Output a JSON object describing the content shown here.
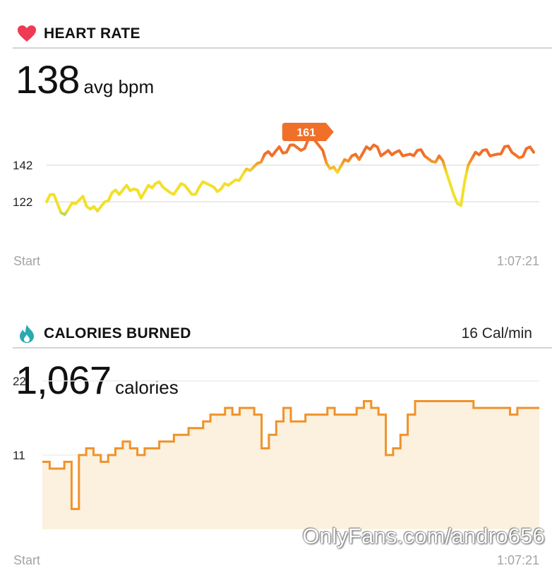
{
  "heart_rate": {
    "title": "HEART RATE",
    "value": "138",
    "unit": "avg bpm",
    "peak_label": "161",
    "start_label": "Start",
    "end_label": "1:07:21",
    "colors": {
      "low": "#4dbdb8",
      "mid": "#f2e02a",
      "high": "#f0702a",
      "icon": "#ee3a55"
    }
  },
  "calories": {
    "title": "CALORIES BURNED",
    "rate": "16 Cal/min",
    "value": "1,067",
    "unit": "calories",
    "start_label": "Start",
    "end_label": "1:07:21",
    "colors": {
      "line": "#f0922a",
      "fill": "#fbf1de",
      "icon": "#2aa9b0"
    }
  },
  "watermark": "OnlyFans.com/andro656",
  "chart_data": [
    {
      "type": "line",
      "title": "HEART RATE",
      "xlabel": "",
      "ylabel": "",
      "ylim": [
        106,
        170
      ],
      "x_tick_labels": [
        "Start",
        "1:07:21"
      ],
      "y_ticks": [
        122,
        142
      ],
      "peak": 161,
      "x": [
        0,
        1,
        2,
        3,
        4,
        5,
        6,
        7,
        8,
        9,
        10,
        11,
        12,
        13,
        14,
        15,
        16,
        17,
        18,
        19,
        20,
        21,
        22,
        23,
        24,
        25,
        26,
        27,
        28,
        29,
        30,
        31,
        32,
        33,
        34,
        35,
        36,
        37,
        38,
        39,
        40,
        41,
        42,
        43,
        44,
        45,
        46,
        47,
        48,
        49,
        50,
        51,
        52,
        53,
        54,
        55,
        56,
        57,
        58,
        59,
        60,
        61,
        62,
        63,
        64,
        65,
        66,
        67
      ],
      "y": [
        122,
        126,
        116,
        118,
        121,
        125,
        118,
        117,
        122,
        127,
        126,
        131,
        129,
        124,
        131,
        132,
        130,
        127,
        129,
        131,
        126,
        130,
        132,
        130,
        129,
        131,
        134,
        137,
        139,
        143,
        148,
        147,
        152,
        149,
        153,
        150,
        156,
        155,
        150,
        140,
        138,
        145,
        147,
        145,
        152,
        153,
        147,
        150,
        149,
        147,
        148,
        150,
        147,
        144,
        147,
        138,
        126,
        120,
        142,
        149,
        150,
        147,
        148,
        152,
        149,
        146,
        151,
        149
      ]
    },
    {
      "type": "area",
      "title": "CALORIES BURNED",
      "xlabel": "",
      "ylabel": "",
      "ylim": [
        0,
        25
      ],
      "x_tick_labels": [
        "Start",
        "1:07:21"
      ],
      "y_ticks": [
        11,
        22
      ],
      "x": [
        0,
        1,
        2,
        3,
        4,
        5,
        6,
        7,
        8,
        9,
        10,
        11,
        12,
        13,
        14,
        15,
        16,
        17,
        18,
        19,
        20,
        21,
        22,
        23,
        24,
        25,
        26,
        27,
        28,
        29,
        30,
        31,
        32,
        33,
        34,
        35,
        36,
        37,
        38,
        39,
        40,
        41,
        42,
        43,
        44,
        45,
        46,
        47,
        48,
        49,
        50,
        51,
        52,
        53,
        54,
        55,
        56,
        57,
        58,
        59,
        60,
        61,
        62,
        63,
        64,
        65,
        66,
        67
      ],
      "y": [
        10,
        9,
        9,
        10,
        3,
        11,
        12,
        11,
        10,
        11,
        12,
        13,
        12,
        11,
        12,
        12,
        13,
        13,
        14,
        14,
        15,
        15,
        16,
        17,
        17,
        18,
        17,
        18,
        18,
        17,
        12,
        14,
        16,
        18,
        16,
        16,
        17,
        17,
        17,
        18,
        17,
        17,
        17,
        18,
        19,
        18,
        17,
        11,
        12,
        14,
        17,
        19,
        19,
        19,
        19,
        19,
        19,
        19,
        19,
        18,
        18,
        18,
        18,
        18,
        17,
        18,
        18,
        18
      ]
    }
  ]
}
